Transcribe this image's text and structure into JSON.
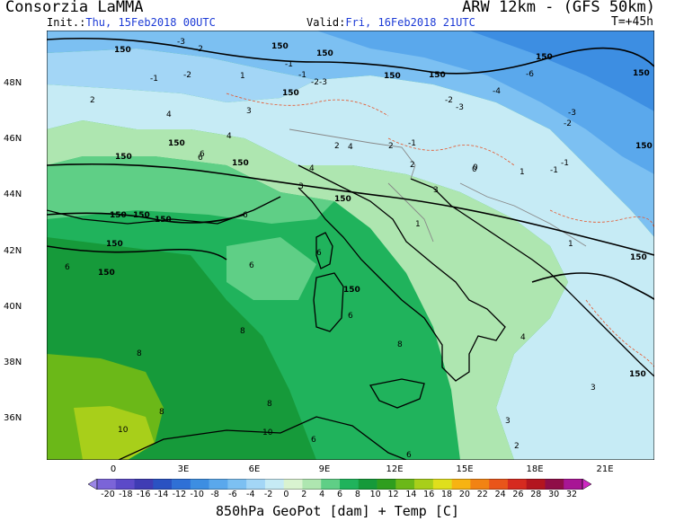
{
  "header": {
    "title": "Consorzia LaMMA",
    "model": "ARW 12km - (GFS 50km)",
    "init_label": "Init.:",
    "init_value": "Thu, 15Feb2018 00UTC",
    "valid_label": "Valid:",
    "valid_value": "Fri, 16Feb2018 21UTC",
    "step": "T=+45h"
  },
  "lat_labels": [
    "48N",
    "46N",
    "44N",
    "42N",
    "40N",
    "38N",
    "36N"
  ],
  "lon_labels": [
    "0",
    "3E",
    "6E",
    "9E",
    "12E",
    "15E",
    "18E",
    "21E"
  ],
  "colorbar": {
    "labels": [
      "-20",
      "-18",
      "-16",
      "-14",
      "-12",
      "-10",
      "-8",
      "-6",
      "-4",
      "-2",
      "0",
      "2",
      "4",
      "6",
      "8",
      "10",
      "12",
      "14",
      "16",
      "18",
      "20",
      "22",
      "24",
      "26",
      "28",
      "30",
      "32"
    ],
    "colors": [
      "#9b86e6",
      "#7b64d8",
      "#5c4ac8",
      "#3f3cb4",
      "#2a52c2",
      "#2f70d6",
      "#3d8ee2",
      "#5aa8ec",
      "#7cc0f2",
      "#a3d6f6",
      "#c6ebf5",
      "#d9f3d0",
      "#aee6b0",
      "#5fcf86",
      "#20b35c",
      "#169a3a",
      "#2f9e1e",
      "#6bb818",
      "#a8cf1a",
      "#dfdf1c",
      "#f7b312",
      "#f28313",
      "#e9551a",
      "#d62a1f",
      "#b3151f",
      "#8f0e48",
      "#a81695",
      "#ce28c2"
    ]
  },
  "caption": "850hPa GeoPot [dam] + Temp [C]",
  "map_labels": {
    "geopot": [
      "150",
      "150",
      "150",
      "150",
      "150",
      "150",
      "150",
      "150",
      "150",
      "150",
      "150",
      "150",
      "150",
      "150",
      "150",
      "150",
      "150",
      "150",
      "150",
      "150",
      "150"
    ],
    "temps": [
      "-3",
      "-2",
      "-1",
      "1",
      "-2",
      "-1",
      "-2",
      "-3",
      "2",
      "4",
      "3",
      "4",
      "-6",
      "-4",
      "-3",
      "-2",
      "-1",
      "0",
      "6",
      "4",
      "3",
      "2",
      "1",
      "6",
      "6",
      "6",
      "6",
      "6",
      "6",
      "8",
      "8",
      "8",
      "8",
      "8",
      "10",
      "10",
      "6",
      "6",
      "4",
      "3",
      "3",
      "2",
      "-1",
      "-1",
      "0",
      "1",
      "1",
      "4",
      "2",
      "-2",
      "-3",
      "-1",
      "2",
      "3"
    ]
  }
}
